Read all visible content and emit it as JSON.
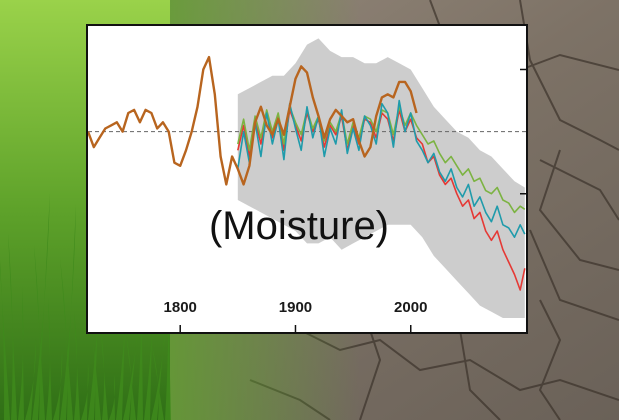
{
  "overlay_text": "(Moisture)",
  "background": {
    "left": "green-grass",
    "right": "cracked-dry-earth"
  },
  "colors": {
    "frame": "#111111",
    "uncertainty_band": "#c8c8c8",
    "reference_line": "#666666",
    "orange": "#b8651f",
    "green": "#7cb342",
    "teal": "#1f9bab",
    "red": "#e53935"
  },
  "chart_data": {
    "type": "line",
    "title": "",
    "xlabel": "",
    "ylabel": "",
    "xlim": [
      1720,
      2100
    ],
    "ylim": [
      -3,
      1.7
    ],
    "x_ticks": [
      1800,
      1900,
      2000
    ],
    "x_tick_labels": [
      "1800",
      "1900",
      "2000"
    ],
    "reference_line": {
      "y": 0,
      "style": "dashed"
    },
    "grid": false,
    "legend": "none",
    "series": [
      {
        "color": "#b8651f",
        "x": [
          1720,
          1725,
          1730,
          1735,
          1740,
          1745,
          1750,
          1755,
          1760,
          1765,
          1770,
          1775,
          1780,
          1785,
          1790,
          1795,
          1800,
          1805,
          1810,
          1815,
          1820,
          1825,
          1830,
          1835,
          1840,
          1845,
          1850,
          1855,
          1860,
          1865,
          1870,
          1875,
          1880,
          1885,
          1890,
          1895,
          1900,
          1905,
          1910,
          1915,
          1920,
          1925,
          1930,
          1935,
          1940,
          1945,
          1950,
          1955,
          1960,
          1965,
          1970,
          1975,
          1980,
          1985,
          1990,
          1995,
          2000,
          2005
        ],
        "y": [
          0.0,
          -0.25,
          -0.1,
          0.05,
          0.1,
          0.15,
          0.0,
          0.3,
          0.35,
          0.15,
          0.35,
          0.3,
          0.05,
          0.15,
          0.0,
          -0.5,
          -0.55,
          -0.3,
          0.0,
          0.4,
          1.0,
          1.2,
          0.6,
          -0.4,
          -0.85,
          -0.4,
          -0.6,
          -0.85,
          -0.55,
          0.15,
          0.4,
          0.1,
          -0.05,
          0.2,
          -0.05,
          0.4,
          0.85,
          1.05,
          0.95,
          0.55,
          0.25,
          -0.1,
          0.2,
          0.35,
          0.25,
          0.15,
          0.2,
          -0.15,
          -0.4,
          -0.25,
          0.25,
          0.55,
          0.6,
          0.55,
          0.8,
          0.8,
          0.65,
          0.3
        ]
      },
      {
        "color": "#e53935",
        "x": [
          1850,
          1855,
          1860,
          1865,
          1870,
          1875,
          1880,
          1885,
          1890,
          1895,
          1900,
          1905,
          1910,
          1915,
          1920,
          1925,
          1930,
          1935,
          1940,
          1945,
          1950,
          1955,
          1960,
          1965,
          1970,
          1975,
          1980,
          1985,
          1990,
          1995,
          2000,
          2005,
          2010,
          2015,
          2020,
          2025,
          2030,
          2035,
          2040,
          2045,
          2050,
          2055,
          2060,
          2065,
          2070,
          2075,
          2080,
          2085,
          2090,
          2095,
          2099
        ],
        "y": [
          -0.3,
          0.1,
          -0.4,
          0.2,
          -0.2,
          0.3,
          -0.1,
          0.25,
          -0.3,
          0.35,
          0.1,
          -0.15,
          0.3,
          0.0,
          0.2,
          -0.25,
          0.1,
          -0.05,
          0.25,
          -0.3,
          0.1,
          -0.2,
          0.2,
          0.15,
          -0.1,
          0.3,
          0.2,
          -0.15,
          0.35,
          0.0,
          0.2,
          -0.1,
          -0.2,
          -0.5,
          -0.4,
          -0.7,
          -0.85,
          -0.75,
          -1.0,
          -1.2,
          -1.1,
          -1.4,
          -1.3,
          -1.6,
          -1.75,
          -1.6,
          -1.9,
          -2.1,
          -2.3,
          -2.55,
          -2.2
        ]
      },
      {
        "color": "#7cb342",
        "x": [
          1850,
          1855,
          1860,
          1865,
          1870,
          1875,
          1880,
          1885,
          1890,
          1895,
          1900,
          1905,
          1910,
          1915,
          1920,
          1925,
          1930,
          1935,
          1940,
          1945,
          1950,
          1955,
          1960,
          1965,
          1970,
          1975,
          1980,
          1985,
          1990,
          1995,
          2000,
          2005,
          2010,
          2015,
          2020,
          2025,
          2030,
          2035,
          2040,
          2045,
          2050,
          2055,
          2060,
          2065,
          2070,
          2075,
          2080,
          2085,
          2090,
          2095,
          2099
        ],
        "y": [
          -0.2,
          0.2,
          -0.3,
          0.25,
          -0.1,
          0.35,
          0.0,
          0.3,
          -0.2,
          0.4,
          0.15,
          -0.05,
          0.35,
          0.05,
          0.25,
          -0.15,
          0.15,
          0.0,
          0.3,
          -0.2,
          0.15,
          -0.1,
          0.25,
          0.2,
          0.0,
          0.35,
          0.3,
          -0.05,
          0.4,
          0.1,
          0.3,
          0.1,
          -0.05,
          -0.2,
          -0.15,
          -0.35,
          -0.5,
          -0.4,
          -0.55,
          -0.7,
          -0.6,
          -0.8,
          -0.75,
          -0.95,
          -1.0,
          -0.9,
          -1.1,
          -1.15,
          -1.3,
          -1.2,
          -1.25
        ]
      },
      {
        "color": "#1f9bab",
        "x": [
          1850,
          1855,
          1860,
          1865,
          1870,
          1875,
          1880,
          1885,
          1890,
          1895,
          1900,
          1905,
          1910,
          1915,
          1920,
          1925,
          1930,
          1935,
          1940,
          1945,
          1950,
          1955,
          1960,
          1965,
          1970,
          1975,
          1980,
          1985,
          1990,
          1995,
          2000,
          2005,
          2010,
          2015,
          2020,
          2025,
          2030,
          2035,
          2040,
          2045,
          2050,
          2055,
          2060,
          2065,
          2070,
          2075,
          2080,
          2085,
          2090,
          2095,
          2099
        ],
        "y": [
          -0.6,
          0.0,
          -0.5,
          0.15,
          -0.4,
          0.3,
          -0.2,
          0.2,
          -0.45,
          0.45,
          0.05,
          -0.3,
          0.4,
          -0.1,
          0.25,
          -0.4,
          0.05,
          -0.2,
          0.35,
          -0.35,
          0.05,
          -0.3,
          0.25,
          0.1,
          -0.2,
          0.45,
          0.3,
          -0.25,
          0.5,
          0.0,
          0.3,
          -0.15,
          -0.3,
          -0.5,
          -0.35,
          -0.65,
          -0.8,
          -0.6,
          -0.9,
          -1.05,
          -0.85,
          -1.2,
          -1.05,
          -1.3,
          -1.45,
          -1.2,
          -1.5,
          -1.55,
          -1.7,
          -1.5,
          -1.65
        ]
      }
    ],
    "band": {
      "color": "#c8c8c8",
      "x": [
        1850,
        1860,
        1870,
        1880,
        1890,
        1900,
        1910,
        1920,
        1930,
        1940,
        1950,
        1960,
        1970,
        1980,
        1990,
        2000,
        2010,
        2020,
        2030,
        2040,
        2050,
        2060,
        2070,
        2080,
        2090,
        2099
      ],
      "upper": [
        0.6,
        0.7,
        0.8,
        0.9,
        0.9,
        1.1,
        1.4,
        1.5,
        1.3,
        1.2,
        1.2,
        1.1,
        1.1,
        1.2,
        1.1,
        1.0,
        0.7,
        0.4,
        0.2,
        0.0,
        -0.1,
        -0.3,
        -0.4,
        -0.6,
        -0.8,
        -0.9
      ],
      "lower": [
        -1.1,
        -1.2,
        -1.3,
        -1.4,
        -1.5,
        -1.6,
        -1.8,
        -1.8,
        -1.7,
        -1.9,
        -1.8,
        -1.7,
        -1.6,
        -1.5,
        -1.5,
        -1.5,
        -1.7,
        -2.0,
        -2.2,
        -2.4,
        -2.6,
        -2.8,
        -2.9,
        -3.0,
        -3.0,
        -3.0
      ]
    }
  }
}
